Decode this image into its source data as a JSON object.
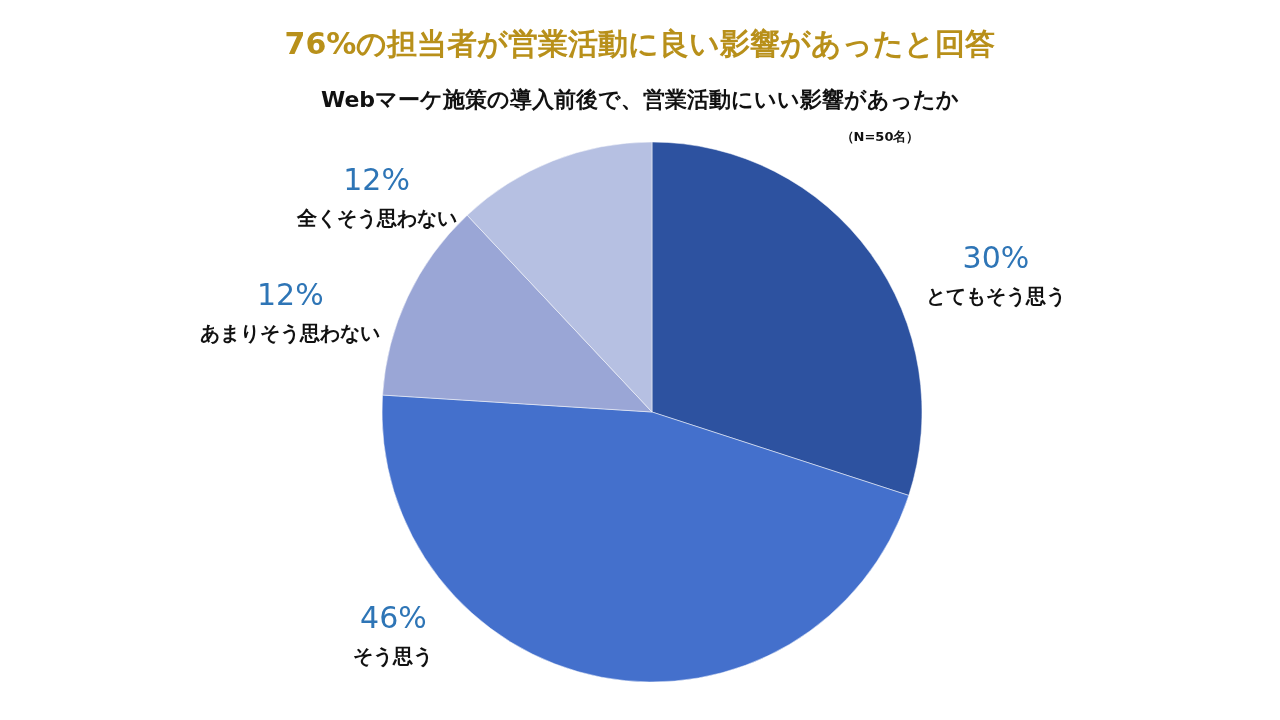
{
  "chart_data": {
    "type": "pie",
    "title": "76%の担当者が営業活動に良い影響があったと回答",
    "subtitle": "Webマーケ施策の導入前後で、営業活動にいい影響があったか",
    "annotations": [
      "（N=50名）"
    ],
    "categories": [
      "とてもそう思う",
      "そう思う",
      "あまりそう思わない",
      "全くそう思わない"
    ],
    "values": [
      30,
      46,
      12,
      12
    ],
    "colors": [
      "#2d52a0",
      "#4470cc",
      "#9aa6d6",
      "#b6c0e2"
    ],
    "value_labels": [
      "30%",
      "46%",
      "12%",
      "12%"
    ]
  }
}
